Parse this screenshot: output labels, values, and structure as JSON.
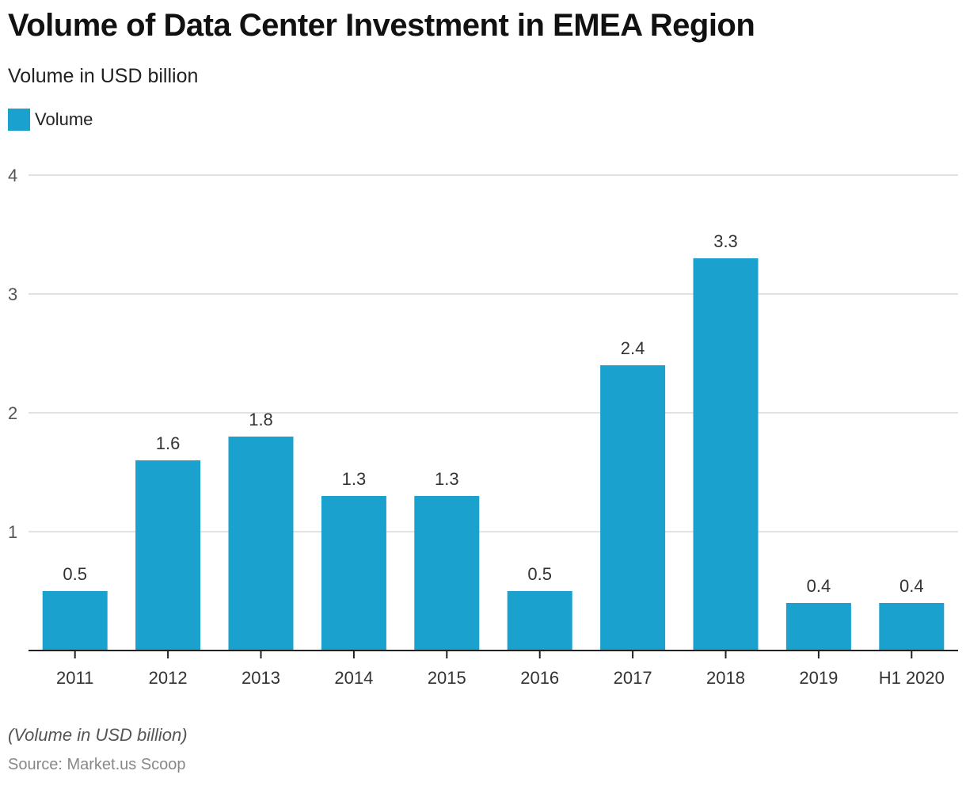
{
  "chart_data": {
    "type": "bar",
    "title": "Volume of Data Center Investment in EMEA Region",
    "subtitle": "Volume in USD billion",
    "xlabel": "",
    "ylabel": "",
    "categories": [
      "2011",
      "2012",
      "2013",
      "2014",
      "2015",
      "2016",
      "2017",
      "2018",
      "2019",
      "H1 2020"
    ],
    "series": [
      {
        "name": "Volume",
        "color": "#1aa1cd",
        "values": [
          0.5,
          1.6,
          1.8,
          1.3,
          1.3,
          0.5,
          2.4,
          3.3,
          0.4,
          0.4
        ],
        "labels": [
          "0.5",
          "1.6",
          "1.8",
          "1.3",
          "1.3",
          "0.5",
          "2.4",
          "3.3",
          "0.4",
          "0.4"
        ]
      }
    ],
    "ylim": [
      0,
      4
    ],
    "yticks": [
      1,
      2,
      3,
      4
    ],
    "ytick_labels": [
      "1",
      "2",
      "3",
      "4"
    ],
    "grid": true,
    "legend": "top-left",
    "note": "(Volume in USD billion)",
    "source": "Source: Market.us Scoop"
  },
  "colors": {
    "bar": "#1aa1cd",
    "grid": "#d9d9d9",
    "axis": "#222222",
    "tick_label": "#555555",
    "data_label": "#333333"
  }
}
